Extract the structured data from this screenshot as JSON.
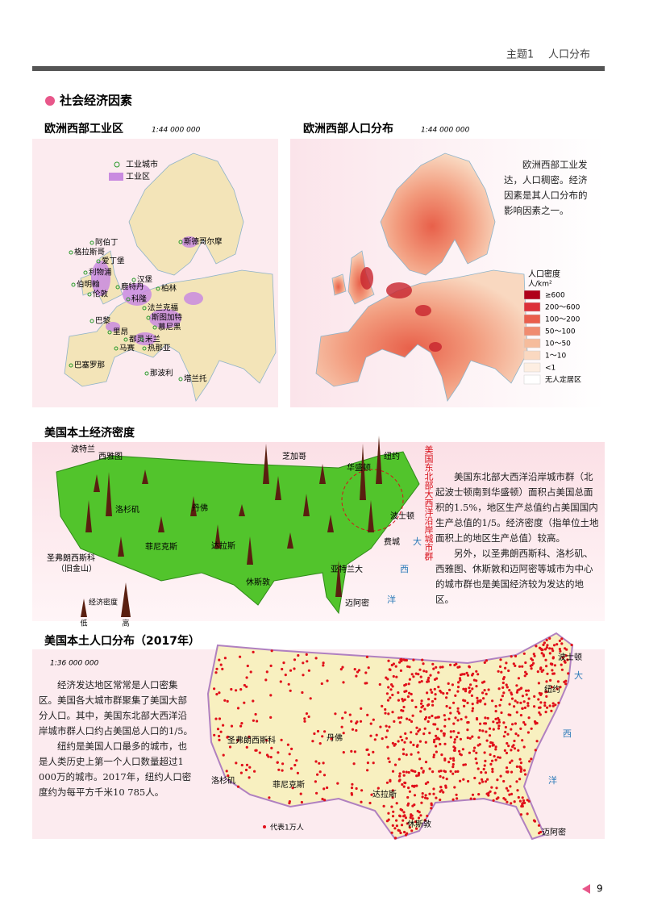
{
  "header": {
    "topic": "主题1",
    "title": "人口分布"
  },
  "section_title": "社会经济因素",
  "europe_industry": {
    "title": "欧洲西部工业区",
    "scale": "1:44 000 000",
    "legend": [
      "工业城市",
      "工业区"
    ],
    "labels": [
      "斯德哥尔摩",
      "阿伯丁",
      "格拉斯哥",
      "爱丁堡",
      "利物浦",
      "伯明翰",
      "伦敦",
      "汉堡",
      "鹿特丹",
      "柏林",
      "科隆",
      "法兰克福",
      "巴黎",
      "斯图加特",
      "慕尼黑",
      "里昂",
      "都灵",
      "米兰",
      "马赛",
      "热那亚",
      "巴塞罗那",
      "那波利",
      "塔兰托"
    ]
  },
  "europe_population": {
    "title": "欧洲西部人口分布",
    "scale": "1:44 000 000",
    "note": "欧洲西部工业发达，人口稠密。经济因素是其人口分布的影响因素之一。",
    "legend_title": "人口密度",
    "legend_unit": "人/km²",
    "legend": [
      "≥600",
      "200～600",
      "100～200",
      "50～100",
      "10～50",
      "1～10",
      "<1",
      "无人定居区"
    ]
  },
  "us_economy": {
    "title": "美国本土经济密度",
    "labels": [
      "波特兰",
      "西雅图",
      "芝加哥",
      "纽约",
      "华盛顿",
      "洛杉矶",
      "丹佛",
      "菲尼克斯",
      "达拉斯",
      "圣弗朗西斯科",
      "（旧金山）",
      "休斯敦",
      "亚特兰大",
      "迈阿密",
      "波士顿",
      "费城"
    ],
    "ocean": [
      "大",
      "西",
      "洋"
    ],
    "region_label": "美国东北部大西洋沿岸城市群",
    "legend_title": "经济密度",
    "legend_low": "低",
    "legend_high": "高",
    "paragraphs": [
      "美国东北部大西洋沿岸城市群（北起波士顿南到华盛顿）面积占美国总面积的1.5%，地区生产总值约占美国国内生产总值的1/5。经济密度（指单位土地面积上的地区生产总值）较高。",
      "另外，以圣弗朗西斯科、洛杉矶、西雅图、休斯敦和迈阿密等城市为中心的城市群也是美国经济较为发达的地区。"
    ]
  },
  "us_population": {
    "title": "美国本土人口分布（2017年）",
    "scale": "1:36 000 000",
    "labels": [
      "波士顿",
      "纽约",
      "圣弗朗西斯科",
      "丹佛",
      "洛杉矶",
      "菲尼克斯",
      "达拉斯",
      "休斯敦",
      "迈阿密"
    ],
    "ocean": [
      "大",
      "西",
      "洋"
    ],
    "legend": "代表1万人",
    "paragraphs": [
      "经济发达地区常常是人口密集区。美国各大城市群聚集了美国大部分人口。其中，美国东北部大西洋沿岸城市群人口约占美国总人口的1/5。",
      "纽约是美国人口最多的城市，也是人类历史上第一个人口数量超过1 000万的城市。2017年，纽约人口密度约为每平方千米10 785人。"
    ]
  },
  "page_number": "9"
}
